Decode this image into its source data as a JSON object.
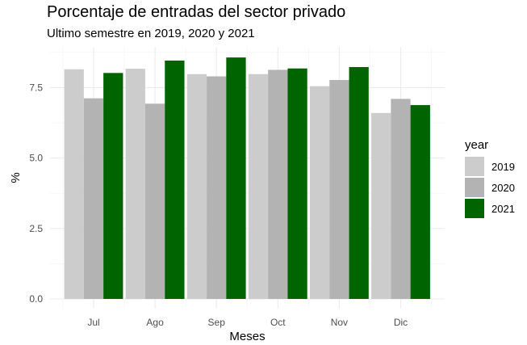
{
  "chart_data": {
    "type": "bar",
    "title": "Porcentaje de entradas del sector privado",
    "subtitle": "Ultimo semestre en 2019, 2020 y 2021",
    "xlabel": "Meses",
    "ylabel": "%",
    "categories": [
      "Jul",
      "Ago",
      "Sep",
      "Oct",
      "Nov",
      "Dic"
    ],
    "series": [
      {
        "name": "2019",
        "color": "#cccccc",
        "values": [
          8.15,
          8.17,
          7.98,
          7.98,
          7.55,
          6.6
        ]
      },
      {
        "name": "2020",
        "color": "#b3b3b3",
        "values": [
          7.12,
          6.93,
          7.9,
          8.13,
          7.77,
          7.1
        ]
      },
      {
        "name": "2021",
        "color": "#006400",
        "values": [
          8.02,
          8.46,
          8.57,
          8.18,
          8.23,
          6.88
        ]
      }
    ],
    "yticks": [
      "0.0",
      "2.5",
      "5.0",
      "7.5"
    ],
    "ylim": [
      0,
      8.75
    ],
    "legend": {
      "title": "year",
      "position": "right"
    },
    "grid": true
  }
}
